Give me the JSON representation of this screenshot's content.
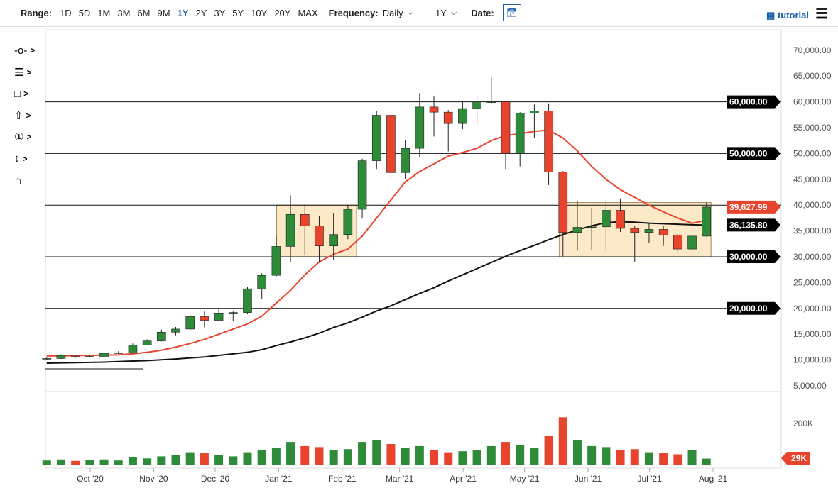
{
  "toolbar": {
    "range_label": "Range:",
    "ranges": [
      "1D",
      "5D",
      "1M",
      "3M",
      "6M",
      "9M",
      "1Y",
      "2Y",
      "3Y",
      "5Y",
      "10Y",
      "20Y",
      "MAX"
    ],
    "active_range": "1Y",
    "frequency_label": "Frequency:",
    "frequency_value": "Daily",
    "period_value": "1Y",
    "date_label": "Date:",
    "tutorial_label": "tutorial"
  },
  "drawing_tools": [
    "line-tool-icon",
    "fibonacci-tool-icon",
    "rectangle-tool-icon",
    "arrow-tool-icon",
    "number-marker-icon",
    "measure-tool-icon",
    "magnet-icon"
  ],
  "colors": {
    "up": "#2e8b3a",
    "down": "#e8432d",
    "ma50": "#e8432d",
    "ma200": "#111111",
    "box_fill": "#fbe9c8",
    "box_stroke": "#a88a55"
  },
  "chart_data": {
    "type": "candlestick",
    "yticks": [
      "70,000.00",
      "65,000.00",
      "60,000.00",
      "55,000.00",
      "50,000.00",
      "45,000.00",
      "40,000.00",
      "35,000.00",
      "30,000.00",
      "25,000.00",
      "20,000.00",
      "15,000.00",
      "10,000.00",
      "5,000.00"
    ],
    "ylim": [
      5000,
      70000
    ],
    "xticks": [
      [
        "2020-10-01",
        "Oct '20"
      ],
      [
        "2020-11-01",
        "Nov '20"
      ],
      [
        "2020-12-01",
        "Dec '20"
      ],
      [
        "2021-01-01",
        "Jan '21"
      ],
      [
        "2021-02-01",
        "Feb '21"
      ],
      [
        "2021-03-01",
        "Mar '21"
      ],
      [
        "2021-04-01",
        "Apr '21"
      ],
      [
        "2021-05-01",
        "May '21"
      ],
      [
        "2021-06-01",
        "Jun '21"
      ],
      [
        "2021-07-01",
        "Jul '21"
      ],
      [
        "2021-08-01",
        "Aug '21"
      ]
    ],
    "horizontal_levels": [
      60000,
      50000,
      40000,
      30000,
      20000
    ],
    "level_labels": {
      "60000": "60,000.00",
      "50000": "50,000.00",
      "30000": "30,000.00",
      "20000": "20,000.00"
    },
    "price_label": "39,627.99",
    "ma200_label": "36,135.80",
    "boxes": [
      {
        "from": "2020-12-31",
        "to": "2021-02-08",
        "low": 30000,
        "high": 40000
      },
      {
        "from": "2021-05-18",
        "to": "2021-07-31",
        "low": 30000,
        "high": 40500
      }
    ],
    "candles": [
      [
        "2020-09-07",
        10200,
        10500,
        10000,
        10300
      ],
      [
        "2020-09-14",
        10300,
        11100,
        10200,
        10900
      ],
      [
        "2020-09-21",
        10900,
        10950,
        10400,
        10700
      ],
      [
        "2020-09-28",
        10700,
        10900,
        10500,
        10700
      ],
      [
        "2020-10-05",
        10700,
        11500,
        10600,
        11300
      ],
      [
        "2020-10-12",
        11300,
        11700,
        11200,
        11400
      ],
      [
        "2020-10-19",
        11400,
        13200,
        11300,
        12900
      ],
      [
        "2020-10-26",
        12900,
        14000,
        12900,
        13700
      ],
      [
        "2020-11-02",
        13700,
        15900,
        13600,
        15400
      ],
      [
        "2020-11-09",
        15400,
        16400,
        14800,
        16000
      ],
      [
        "2020-11-16",
        16000,
        18800,
        15800,
        18400
      ],
      [
        "2020-11-23",
        18400,
        19400,
        16300,
        17700
      ],
      [
        "2020-11-30",
        17700,
        19900,
        17600,
        19100
      ],
      [
        "2020-12-07",
        19100,
        19400,
        17600,
        19200
      ],
      [
        "2020-12-14",
        19200,
        24200,
        19000,
        23800
      ],
      [
        "2020-12-21",
        23800,
        26800,
        21900,
        26400
      ],
      [
        "2020-12-28",
        26400,
        34000,
        26000,
        32000
      ],
      [
        "2021-01-04",
        32000,
        41900,
        29000,
        38200
      ],
      [
        "2021-01-11",
        38200,
        40100,
        30400,
        36000
      ],
      [
        "2021-01-18",
        36000,
        37900,
        28900,
        32100
      ],
      [
        "2021-01-25",
        32100,
        38500,
        29300,
        34300
      ],
      [
        "2021-02-01",
        34300,
        40000,
        33400,
        39200
      ],
      [
        "2021-02-08",
        39200,
        49000,
        37400,
        48600
      ],
      [
        "2021-02-15",
        48600,
        58300,
        47000,
        57400
      ],
      [
        "2021-02-22",
        57400,
        58000,
        44900,
        46300
      ],
      [
        "2021-03-01",
        46300,
        52600,
        45000,
        51000
      ],
      [
        "2021-03-08",
        51000,
        61700,
        49300,
        59000
      ],
      [
        "2021-03-15",
        59000,
        61200,
        53300,
        58000
      ],
      [
        "2021-03-22",
        58000,
        58400,
        50400,
        55800
      ],
      [
        "2021-03-29",
        55800,
        60100,
        54700,
        58700
      ],
      [
        "2021-04-05",
        58700,
        61200,
        55500,
        60000
      ],
      [
        "2021-04-12",
        60000,
        64900,
        59500,
        60000
      ],
      [
        "2021-04-19",
        60000,
        60100,
        47000,
        50100
      ],
      [
        "2021-04-26",
        50100,
        58000,
        47500,
        57800
      ],
      [
        "2021-05-03",
        57800,
        59500,
        53000,
        58200
      ],
      [
        "2021-05-10",
        58200,
        59700,
        43900,
        46400
      ],
      [
        "2021-05-17",
        46400,
        46600,
        30100,
        34700
      ],
      [
        "2021-05-24",
        34700,
        40800,
        31200,
        35700
      ],
      [
        "2021-05-31",
        35700,
        39500,
        31300,
        35800
      ],
      [
        "2021-06-07",
        35800,
        40900,
        31100,
        39000
      ],
      [
        "2021-06-14",
        39000,
        41300,
        34800,
        35500
      ],
      [
        "2021-06-21",
        35500,
        36000,
        28900,
        34700
      ],
      [
        "2021-06-28",
        34700,
        36600,
        32700,
        35300
      ],
      [
        "2021-07-05",
        35300,
        35900,
        32100,
        34200
      ],
      [
        "2021-07-12",
        34200,
        34600,
        31000,
        31500
      ],
      [
        "2021-07-19",
        31500,
        34500,
        29300,
        34000
      ],
      [
        "2021-07-26",
        34000,
        40500,
        33900,
        39628
      ]
    ],
    "ma50": [
      10800,
      10800,
      10850,
      10900,
      10950,
      11000,
      11200,
      11500,
      11900,
      12500,
      13200,
      14000,
      15000,
      16000,
      17000,
      18500,
      21000,
      23500,
      26500,
      29000,
      30500,
      31500,
      34000,
      37500,
      41000,
      44500,
      46500,
      48000,
      49500,
      50200,
      51000,
      52500,
      53500,
      53800,
      54300,
      54500,
      53000,
      50500,
      47500,
      45000,
      43000,
      41500,
      40000,
      38700,
      37500,
      36500,
      37100
    ],
    "ma200": [
      9400,
      9450,
      9500,
      9550,
      9600,
      9700,
      9800,
      9900,
      10050,
      10200,
      10400,
      10600,
      10900,
      11200,
      11500,
      12000,
      12800,
      13500,
      14300,
      15200,
      16300,
      17200,
      18300,
      19500,
      20500,
      21700,
      22900,
      24000,
      25300,
      26500,
      27700,
      28900,
      30100,
      31200,
      32200,
      33300,
      34300,
      35200,
      36000,
      36600,
      36800,
      36700,
      36500,
      36400,
      36300,
      36200,
      36136
    ],
    "volume": {
      "ticks": [
        "200K"
      ],
      "last_label": "29K",
      "values_k": [
        20,
        25,
        18,
        22,
        25,
        20,
        35,
        30,
        40,
        45,
        60,
        55,
        45,
        40,
        60,
        70,
        80,
        110,
        90,
        85,
        70,
        75,
        110,
        120,
        100,
        80,
        90,
        70,
        60,
        65,
        70,
        90,
        110,
        95,
        80,
        140,
        230,
        120,
        90,
        85,
        70,
        75,
        60,
        55,
        50,
        70,
        29
      ]
    }
  }
}
